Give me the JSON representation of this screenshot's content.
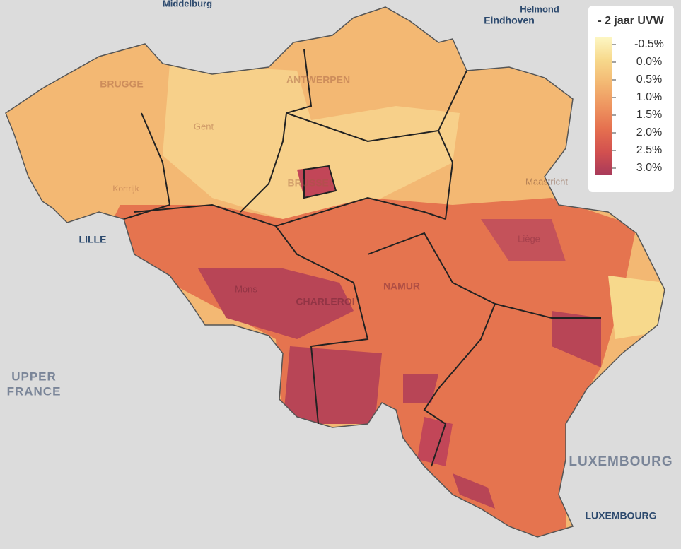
{
  "map": {
    "places": [
      {
        "label": "Middelburg",
        "kind": "city"
      },
      {
        "label": "Helmond",
        "kind": "city"
      },
      {
        "label": "Eindhoven",
        "kind": "city"
      },
      {
        "label": "LILLE",
        "kind": "city"
      },
      {
        "label": "UPPER",
        "kind": "region"
      },
      {
        "label": "FRANCE",
        "kind": "region"
      },
      {
        "label": "LUXEMBOURG",
        "kind": "country"
      },
      {
        "label": "LUXEMBOURG",
        "kind": "city"
      },
      {
        "label": "BRUGGE",
        "kind": "faint"
      },
      {
        "label": "ANTWERPEN",
        "kind": "faint"
      },
      {
        "label": "Gent",
        "kind": "faint"
      },
      {
        "label": "Kortrijk",
        "kind": "faint"
      },
      {
        "label": "BRUSSEL",
        "kind": "faint"
      },
      {
        "label": "Maastricht",
        "kind": "faint"
      },
      {
        "label": "Liège",
        "kind": "faint"
      },
      {
        "label": "Mons",
        "kind": "faint"
      },
      {
        "label": "CHARLEROI",
        "kind": "faint"
      },
      {
        "label": "NAMUR",
        "kind": "faint"
      }
    ],
    "legend": {
      "title": "- 2 jaar UVW",
      "colorscale": [
        "#fdf7c4",
        "#f7d98c",
        "#f3b873",
        "#ee9560",
        "#e5704f",
        "#d2504f",
        "#a83a5a"
      ],
      "ticks": [
        {
          "value": -0.5,
          "label": "-0.5%"
        },
        {
          "value": 0.0,
          "label": "0.0%"
        },
        {
          "value": 0.5,
          "label": "0.5%"
        },
        {
          "value": 1.0,
          "label": "1.0%"
        },
        {
          "value": 1.5,
          "label": "1.5%"
        },
        {
          "value": 2.0,
          "label": "2.0%"
        },
        {
          "value": 2.5,
          "label": "2.5%"
        },
        {
          "value": 3.0,
          "label": "3.0%"
        }
      ]
    }
  }
}
